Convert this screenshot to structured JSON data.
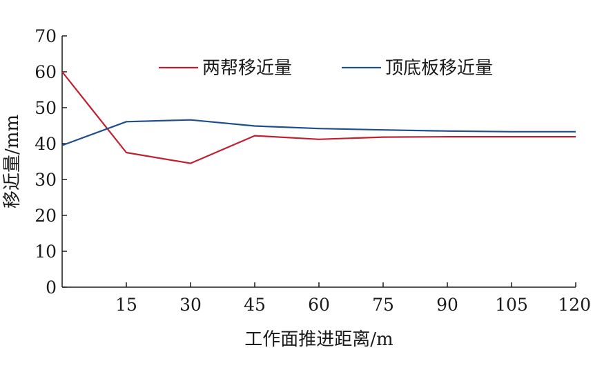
{
  "chart_data": {
    "type": "line",
    "xlabel": "工作面推进距离/m",
    "ylabel": "移近量/mm",
    "x": [
      0,
      15,
      30,
      45,
      60,
      75,
      90,
      105,
      120
    ],
    "xticks": [
      15,
      30,
      45,
      60,
      75,
      90,
      105,
      120
    ],
    "xtick_labels": [
      "15",
      "30",
      "45",
      "60",
      "75",
      "90",
      "105",
      "120"
    ],
    "yticks": [
      0,
      10,
      20,
      30,
      40,
      50,
      60,
      70
    ],
    "ytick_labels": [
      "0",
      "10",
      "20",
      "30",
      "40",
      "50",
      "60",
      "70"
    ],
    "xlim": [
      0,
      120
    ],
    "ylim": [
      0,
      70
    ],
    "grid": false,
    "legend_position": "top-right",
    "series": [
      {
        "name": "两帮移近量",
        "color": "#c0202e",
        "values": [
          60,
          37.5,
          34.5,
          42.2,
          41.2,
          41.8,
          41.9,
          41.9,
          41.9
        ]
      },
      {
        "name": "顶底板移近量",
        "color": "#1f4e8c",
        "values": [
          39.5,
          46.1,
          46.6,
          44.9,
          44.2,
          43.8,
          43.5,
          43.3,
          43.3
        ]
      }
    ]
  }
}
